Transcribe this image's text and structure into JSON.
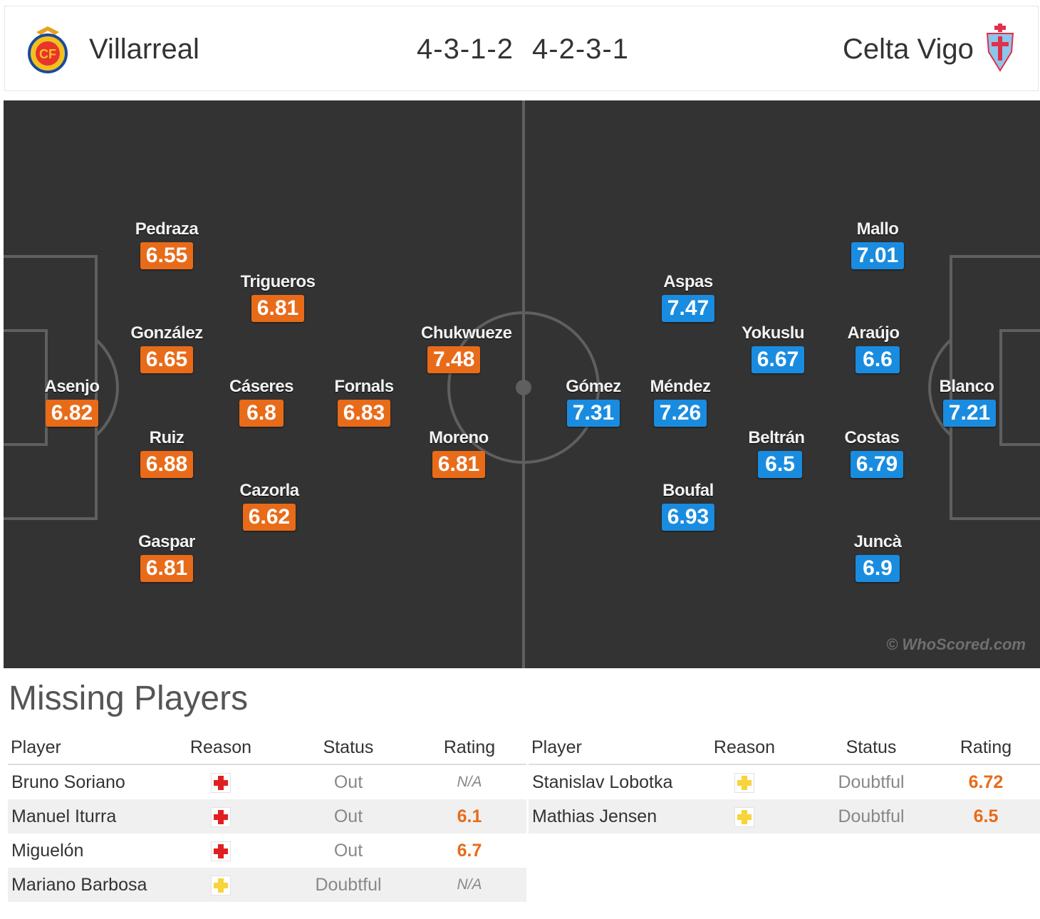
{
  "header": {
    "home_team": "Villarreal",
    "home_formation": "4-3-1-2",
    "away_formation": "4-2-3-1",
    "away_team": "Celta Vigo",
    "home_crest_icon": "villarreal-crest-icon",
    "away_crest_icon": "celta-vigo-crest-icon"
  },
  "colors": {
    "home_rating": "#e86b1a",
    "away_rating": "#1a8ce0",
    "pitch": "#333333"
  },
  "pitch": {
    "watermark": "© WhoScored.com",
    "home_players": [
      {
        "name": "Asenjo",
        "rating": "6.82"
      },
      {
        "name": "Pedraza",
        "rating": "6.55"
      },
      {
        "name": "González",
        "rating": "6.65"
      },
      {
        "name": "Ruiz",
        "rating": "6.88"
      },
      {
        "name": "Gaspar",
        "rating": "6.81"
      },
      {
        "name": "Trigueros",
        "rating": "6.81"
      },
      {
        "name": "Cáseres",
        "rating": "6.8"
      },
      {
        "name": "Cazorla",
        "rating": "6.62"
      },
      {
        "name": "Fornals",
        "rating": "6.83"
      },
      {
        "name": "Chukwueze",
        "rating": "7.48"
      },
      {
        "name": "Moreno",
        "rating": "6.81"
      }
    ],
    "away_players": [
      {
        "name": "Gómez",
        "rating": "7.31"
      },
      {
        "name": "Aspas",
        "rating": "7.47"
      },
      {
        "name": "Méndez",
        "rating": "7.26"
      },
      {
        "name": "Boufal",
        "rating": "6.93"
      },
      {
        "name": "Yokuslu",
        "rating": "6.67"
      },
      {
        "name": "Beltrán",
        "rating": "6.5"
      },
      {
        "name": "Mallo",
        "rating": "7.01"
      },
      {
        "name": "Araújo",
        "rating": "6.6"
      },
      {
        "name": "Costas",
        "rating": "6.79"
      },
      {
        "name": "Juncà",
        "rating": "6.9"
      },
      {
        "name": "Blanco",
        "rating": "7.21"
      }
    ]
  },
  "missing_players": {
    "title": "Missing Players",
    "columns": {
      "player": "Player",
      "reason": "Reason",
      "status": "Status",
      "rating": "Rating"
    },
    "home": [
      {
        "player": "Bruno Soriano",
        "reason_icon": "injury-icon",
        "status": "Out",
        "rating": "N/A"
      },
      {
        "player": "Manuel Iturra",
        "reason_icon": "injury-icon",
        "status": "Out",
        "rating": "6.1"
      },
      {
        "player": "Miguelón",
        "reason_icon": "injury-icon",
        "status": "Out",
        "rating": "6.7"
      },
      {
        "player": "Mariano Barbosa",
        "reason_icon": "doubtful-icon",
        "status": "Doubtful",
        "rating": "N/A"
      }
    ],
    "away": [
      {
        "player": "Stanislav Lobotka",
        "reason_icon": "doubtful-icon",
        "status": "Doubtful",
        "rating": "6.72"
      },
      {
        "player": "Mathias Jensen",
        "reason_icon": "doubtful-icon",
        "status": "Doubtful",
        "rating": "6.5"
      }
    ]
  }
}
